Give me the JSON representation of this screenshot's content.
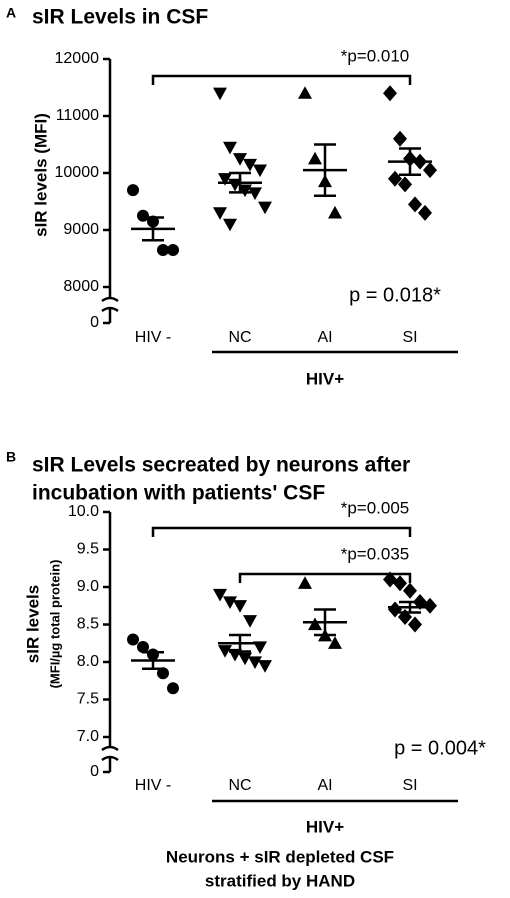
{
  "chart_data": [
    {
      "type": "dot",
      "panel": "A",
      "title": [
        "sIR Levels in CSF"
      ],
      "ylabel": [
        "sIR levels (MFI)"
      ],
      "categories": [
        "HIV -",
        "NC",
        "AI",
        "SI"
      ],
      "markers": [
        "circle",
        "triangle-down",
        "triangle-up",
        "diamond"
      ],
      "color": "#000000",
      "points": [
        [
          9700,
          9250,
          9150,
          8650,
          8650
        ],
        [
          11400,
          10450,
          10250,
          10150,
          10050,
          9900,
          9800,
          9700,
          9650,
          9400,
          9300,
          9100
        ],
        [
          11400,
          10250,
          9850,
          9300
        ],
        [
          11400,
          10600,
          10250,
          10200,
          10050,
          9900,
          9800,
          9450,
          9300
        ]
      ],
      "means": [
        9020,
        9830,
        10050,
        10200
      ],
      "sems": [
        200,
        170,
        450,
        230
      ],
      "ylim": [
        8000,
        12000
      ],
      "yticks": [
        0,
        8000,
        9000,
        10000,
        11000,
        12000
      ],
      "axis_break": true,
      "group": {
        "label": "HIV+",
        "from": 1,
        "to": 3
      },
      "comparisons": [
        {
          "label": "*p=0.010",
          "from": 0,
          "to": 3
        }
      ],
      "stat": "p = 0.018*"
    },
    {
      "type": "dot",
      "panel": "B",
      "title": [
        "sIR Levels secreated by neurons after",
        "incubation with patients' CSF"
      ],
      "ylabel": [
        "sIR levels",
        "(MFI/µg total protein)"
      ],
      "xlabel": [
        "Neurons + sIR depleted CSF",
        "stratified by HAND"
      ],
      "categories": [
        "HIV -",
        "NC",
        "AI",
        "SI"
      ],
      "markers": [
        "circle",
        "triangle-down",
        "triangle-up",
        "diamond"
      ],
      "color": "#000000",
      "points": [
        [
          8.3,
          8.2,
          8.1,
          7.85,
          7.65
        ],
        [
          8.9,
          8.8,
          8.75,
          8.55,
          8.2,
          8.15,
          8.1,
          8.05,
          8.0,
          7.95
        ],
        [
          9.05,
          8.5,
          8.35,
          8.25
        ],
        [
          9.1,
          9.05,
          8.95,
          8.8,
          8.75,
          8.7,
          8.6,
          8.5
        ]
      ],
      "means": [
        8.02,
        8.25,
        8.53,
        8.73
      ],
      "sems": [
        0.11,
        0.11,
        0.17,
        0.07
      ],
      "ylim": [
        7,
        10
      ],
      "yticks": [
        0,
        {
          "value": 7,
          "label": "7.0"
        },
        7.5,
        {
          "value": 8,
          "label": "8.0"
        },
        8.5,
        {
          "value": 9,
          "label": "9.0"
        },
        9.5,
        {
          "value": 10,
          "label": "10.0"
        }
      ],
      "axis_break": true,
      "group": {
        "label": "HIV+",
        "from": 1,
        "to": 3
      },
      "comparisons": [
        {
          "label": "*p=0.005",
          "from": 0,
          "to": 3
        },
        {
          "label": "*p=0.035",
          "from": 1,
          "to": 3
        }
      ],
      "stat": "p = 0.004*"
    }
  ]
}
